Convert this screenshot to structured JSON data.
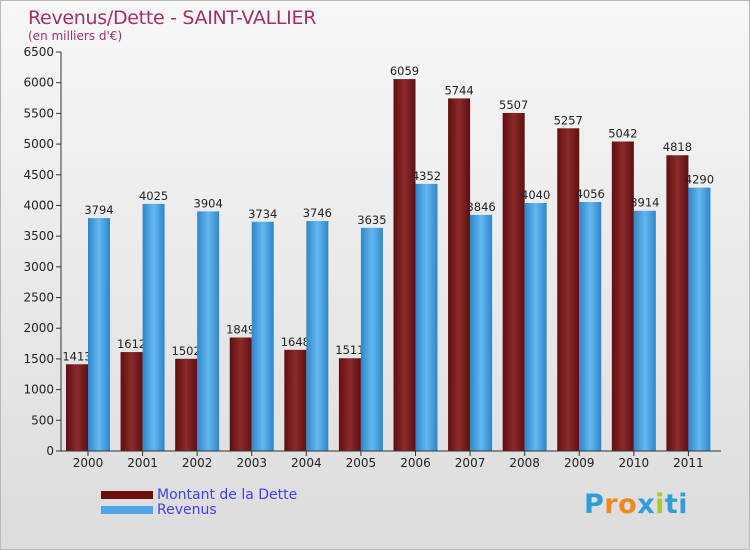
{
  "title": "Revenus/Dette - SAINT-VALLIER",
  "subtitle": "(en milliers d'€)",
  "legend": {
    "debt_label": "Montant de la Dette",
    "revenue_label": "Revenus"
  },
  "logo": {
    "text": "Proxiti"
  },
  "colors": {
    "title": "#a0306a",
    "debt": "#7a1c1c",
    "revenue": "#4ea6e6",
    "legend_text": "#3f3ff0"
  },
  "chart_data": {
    "type": "bar",
    "categories": [
      "2000",
      "2001",
      "2002",
      "2003",
      "2004",
      "2005",
      "2006",
      "2007",
      "2008",
      "2009",
      "2010",
      "2011"
    ],
    "series": [
      {
        "name": "Montant de la Dette",
        "values": [
          1413,
          1612,
          1502,
          1849,
          1648,
          1511,
          6059,
          5744,
          5507,
          5257,
          5042,
          4818
        ]
      },
      {
        "name": "Revenus",
        "values": [
          3794,
          4025,
          3904,
          3734,
          3746,
          3635,
          4352,
          3846,
          4040,
          4056,
          3914,
          4290
        ]
      }
    ],
    "ylim": [
      0,
      6500
    ],
    "ytick_step": 500,
    "grid": false,
    "legend_position": "bottom-left"
  }
}
